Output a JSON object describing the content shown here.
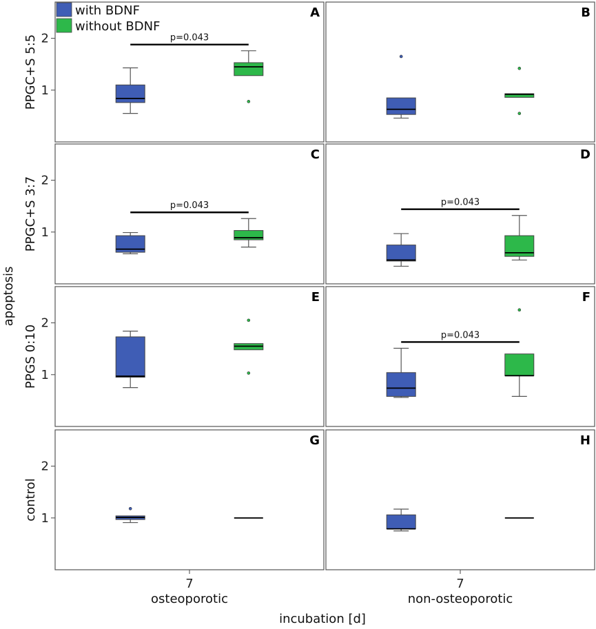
{
  "chart_data": {
    "type": "boxplot",
    "ylabel": "apoptosis",
    "xlabel": "incubation [d]",
    "ylim": [
      0,
      2.7
    ],
    "yticks": [
      1,
      2
    ],
    "x_tick": "7",
    "columns": [
      "osteoporotic",
      "non-osteoporotic"
    ],
    "rows": [
      "PPGC+S 5:5",
      "PPGC+S 3:7",
      "PPGS 0:10",
      "control"
    ],
    "legend": [
      {
        "name": "with BDNF",
        "color": "#3f5db5"
      },
      {
        "name": "without BDNF",
        "color": "#2db84a"
      }
    ],
    "panels": [
      {
        "letter": "A",
        "row": 0,
        "col": 0,
        "sig": "p=0.043",
        "boxes": [
          {
            "series": "with BDNF",
            "min": 0.55,
            "q1": 0.76,
            "median": 0.84,
            "q3": 1.1,
            "max": 1.43,
            "outliers": []
          },
          {
            "series": "without BDNF",
            "min": 1.28,
            "q1": 1.28,
            "median": 1.45,
            "q3": 1.53,
            "max": 1.76,
            "outliers": [
              0.78
            ]
          }
        ]
      },
      {
        "letter": "B",
        "row": 0,
        "col": 1,
        "sig": "",
        "boxes": [
          {
            "series": "with BDNF",
            "min": 0.46,
            "q1": 0.53,
            "median": 0.63,
            "q3": 0.85,
            "max": 0.85,
            "outliers": [
              1.65
            ]
          },
          {
            "series": "without BDNF",
            "min": 0.86,
            "q1": 0.86,
            "median": 0.92,
            "q3": 0.93,
            "max": 0.93,
            "outliers": [
              1.42,
              0.55
            ]
          }
        ]
      },
      {
        "letter": "C",
        "row": 1,
        "col": 0,
        "sig": "p=0.043",
        "boxes": [
          {
            "series": "with BDNF",
            "min": 0.58,
            "q1": 0.61,
            "median": 0.67,
            "q3": 0.93,
            "max": 0.99,
            "outliers": []
          },
          {
            "series": "without BDNF",
            "min": 0.71,
            "q1": 0.85,
            "median": 0.89,
            "q3": 1.03,
            "max": 1.26,
            "outliers": []
          }
        ]
      },
      {
        "letter": "D",
        "row": 1,
        "col": 1,
        "sig": "p=0.043",
        "boxes": [
          {
            "series": "with BDNF",
            "min": 0.34,
            "q1": 0.44,
            "median": 0.46,
            "q3": 0.75,
            "max": 0.97,
            "outliers": []
          },
          {
            "series": "without BDNF",
            "min": 0.46,
            "q1": 0.53,
            "median": 0.6,
            "q3": 0.93,
            "max": 1.32,
            "outliers": []
          }
        ]
      },
      {
        "letter": "E",
        "row": 2,
        "col": 0,
        "sig": "",
        "boxes": [
          {
            "series": "with BDNF",
            "min": 0.75,
            "q1": 0.95,
            "median": 0.97,
            "q3": 1.73,
            "max": 1.84,
            "outliers": []
          },
          {
            "series": "without BDNF",
            "min": 1.48,
            "q1": 1.48,
            "median": 1.55,
            "q3": 1.6,
            "max": 1.6,
            "outliers": [
              2.05,
              1.03
            ]
          }
        ]
      },
      {
        "letter": "F",
        "row": 2,
        "col": 1,
        "sig": "p=0.043",
        "boxes": [
          {
            "series": "with BDNF",
            "min": 0.56,
            "q1": 0.58,
            "median": 0.74,
            "q3": 1.04,
            "max": 1.51,
            "outliers": []
          },
          {
            "series": "without BDNF",
            "min": 0.58,
            "q1": 0.98,
            "median": 0.98,
            "q3": 1.4,
            "max": 1.4,
            "outliers": [
              2.25
            ]
          }
        ]
      },
      {
        "letter": "G",
        "row": 3,
        "col": 0,
        "sig": "",
        "boxes": [
          {
            "series": "with BDNF",
            "min": 0.91,
            "q1": 0.97,
            "median": 1.01,
            "q3": 1.04,
            "max": 1.04,
            "outliers": [
              1.18
            ]
          },
          {
            "series": "without BDNF",
            "min": 1.0,
            "q1": 1.0,
            "median": 1.0,
            "q3": 1.0,
            "max": 1.0,
            "outliers": []
          }
        ]
      },
      {
        "letter": "H",
        "row": 3,
        "col": 1,
        "sig": "",
        "boxes": [
          {
            "series": "with BDNF",
            "min": 0.75,
            "q1": 0.79,
            "median": 0.79,
            "q3": 1.06,
            "max": 1.17,
            "outliers": []
          },
          {
            "series": "without BDNF",
            "min": 1.0,
            "q1": 1.0,
            "median": 1.0,
            "q3": 1.0,
            "max": 1.0,
            "outliers": []
          }
        ]
      }
    ]
  }
}
